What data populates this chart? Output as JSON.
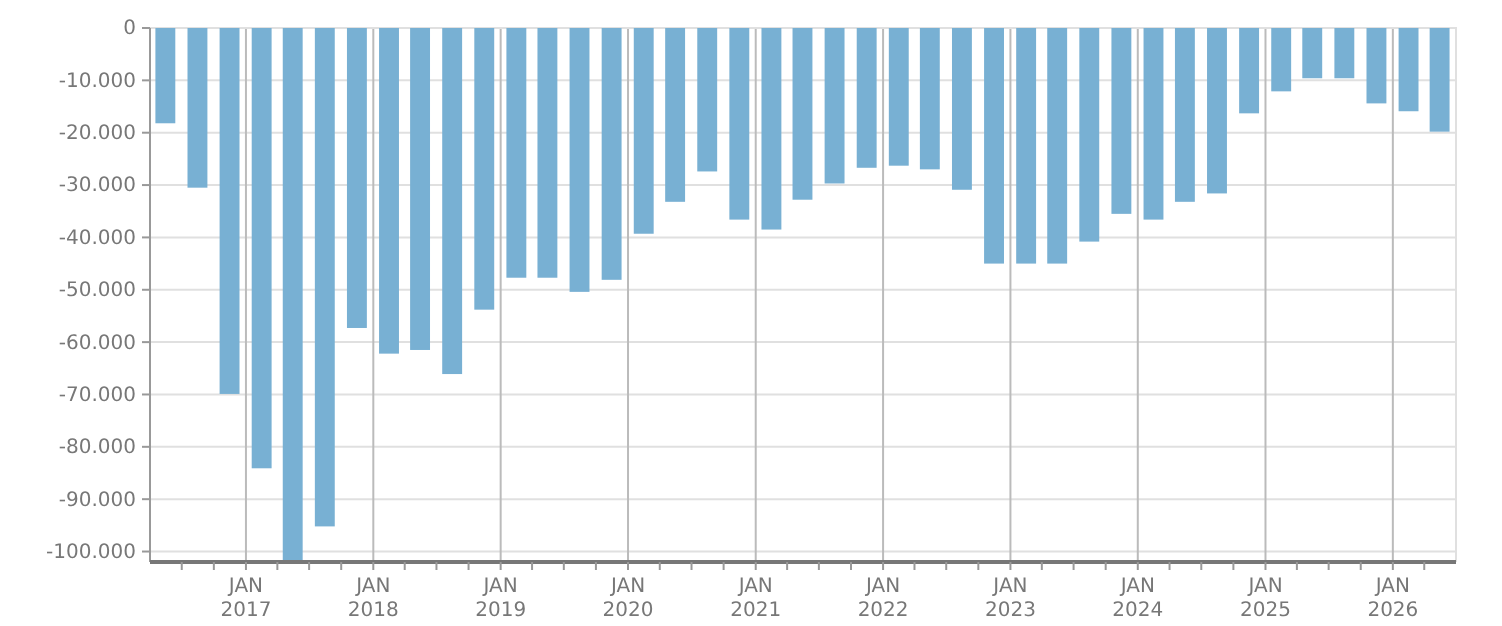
{
  "chart_data": {
    "type": "bar",
    "color": "#78b0d3",
    "x": [
      "2016-05-15",
      "2016-08-15",
      "2016-11-15",
      "2017-02-15",
      "2017-05-15",
      "2017-08-15",
      "2017-11-15",
      "2018-02-15",
      "2018-05-15",
      "2018-08-15",
      "2018-11-15",
      "2019-02-15",
      "2019-05-15",
      "2019-08-15",
      "2019-11-15",
      "2020-02-15",
      "2020-05-15",
      "2020-08-15",
      "2020-11-15",
      "2021-02-15",
      "2021-05-15",
      "2021-08-15",
      "2021-11-15",
      "2022-02-15",
      "2022-05-15",
      "2022-08-15",
      "2022-11-15",
      "2023-02-15",
      "2023-05-15",
      "2023-08-15",
      "2023-11-15",
      "2024-02-15",
      "2024-05-15",
      "2024-08-15",
      "2024-11-15",
      "2025-02-15",
      "2025-05-15",
      "2025-08-15",
      "2025-11-15",
      "2026-02-15",
      "2026-05-15"
    ],
    "values": [
      -18200,
      -30500,
      -69900,
      -84100,
      -102000,
      -95200,
      -57300,
      -62200,
      -61500,
      -66100,
      -53800,
      -47700,
      -47700,
      -50400,
      -48100,
      -39300,
      -33200,
      -27400,
      -36600,
      -38500,
      -32800,
      -29700,
      -26700,
      -26300,
      -27000,
      -30900,
      -45000,
      -45000,
      -45000,
      -40800,
      -35500,
      -36600,
      -33200,
      -31600,
      -16300,
      -12100,
      -9600,
      -9600,
      -14400,
      -15900,
      -19800
    ],
    "xlim": [
      "2016-04-01",
      "2026-07-01"
    ],
    "ylim": [
      -102000,
      0
    ],
    "yticks": [
      0,
      {
        "value": -10000,
        "label": "-10.000"
      },
      {
        "value": -20000,
        "label": "-20.000"
      },
      {
        "value": -30000,
        "label": "-30.000"
      },
      {
        "value": -40000,
        "label": "-40.000"
      },
      {
        "value": -50000,
        "label": "-50.000"
      },
      {
        "value": -60000,
        "label": "-60.000"
      },
      {
        "value": -70000,
        "label": "-70.000"
      },
      {
        "value": -80000,
        "label": "-80.000"
      },
      {
        "value": -90000,
        "label": "-90.000"
      },
      {
        "value": -100000,
        "label": "-100.000"
      }
    ],
    "xticks": [
      {
        "value": "2016-07-01",
        "label": null
      },
      {
        "value": "2016-10-01",
        "label": null
      },
      {
        "value": "2017-01-01",
        "label": "JAN 2017"
      },
      {
        "value": "2017-04-01",
        "label": null
      },
      {
        "value": "2017-07-01",
        "label": null
      },
      {
        "value": "2017-10-01",
        "label": null
      },
      {
        "value": "2018-01-01",
        "label": "JAN 2018"
      },
      {
        "value": "2018-04-01",
        "label": null
      },
      {
        "value": "2018-07-01",
        "label": null
      },
      {
        "value": "2018-10-01",
        "label": null
      },
      {
        "value": "2019-01-01",
        "label": "JAN 2019"
      },
      {
        "value": "2019-04-01",
        "label": null
      },
      {
        "value": "2019-07-01",
        "label": null
      },
      {
        "value": "2019-10-01",
        "label": null
      },
      {
        "value": "2020-01-01",
        "label": "JAN 2020"
      },
      {
        "value": "2020-04-01",
        "label": null
      },
      {
        "value": "2020-07-01",
        "label": null
      },
      {
        "value": "2020-10-01",
        "label": null
      },
      {
        "value": "2021-01-01",
        "label": "JAN 2021"
      },
      {
        "value": "2021-04-01",
        "label": null
      },
      {
        "value": "2021-07-01",
        "label": null
      },
      {
        "value": "2021-10-01",
        "label": null
      },
      {
        "value": "2022-01-01",
        "label": "JAN 2022"
      },
      {
        "value": "2022-04-01",
        "label": null
      },
      {
        "value": "2022-07-01",
        "label": null
      },
      {
        "value": "2022-10-01",
        "label": null
      },
      {
        "value": "2023-01-01",
        "label": "JAN 2023"
      },
      {
        "value": "2023-04-01",
        "label": null
      },
      {
        "value": "2023-07-01",
        "label": null
      },
      {
        "value": "2023-10-01",
        "label": null
      },
      {
        "value": "2024-01-01",
        "label": "JAN 2024"
      },
      {
        "value": "2024-04-01",
        "label": null
      },
      {
        "value": "2024-07-01",
        "label": null
      },
      {
        "value": "2024-10-01",
        "label": null
      },
      {
        "value": "2025-01-01",
        "label": "JAN 2025"
      },
      {
        "value": "2025-04-01",
        "label": null
      },
      {
        "value": "2025-07-01",
        "label": null
      },
      {
        "value": "2025-10-01",
        "label": null
      },
      {
        "value": "2026-01-01",
        "label": "JAN 2026"
      },
      {
        "value": "2026-04-01",
        "label": null
      }
    ],
    "grid": true
  }
}
